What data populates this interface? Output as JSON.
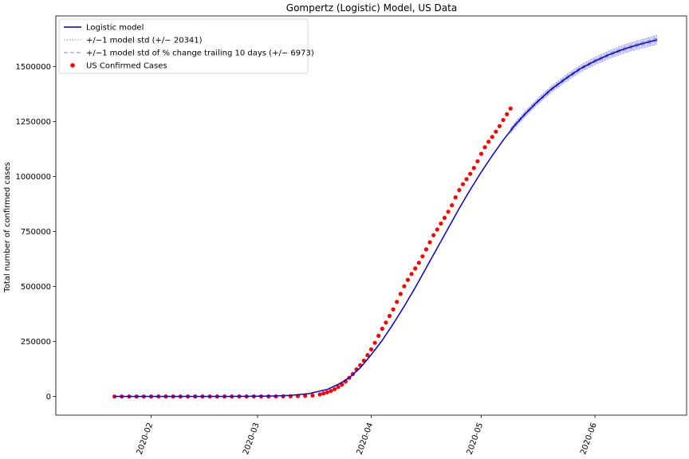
{
  "chart_data": {
    "type": "line",
    "title": "Gompertz (Logistic) Model, US Data",
    "xlabel": "",
    "ylabel": "Total number of confirmed cases",
    "x_type": "date",
    "xlim": [
      "2020-01-06",
      "2020-06-26"
    ],
    "ylim": [
      -85000,
      1730000
    ],
    "x_ticks": [
      "2020-02-01",
      "2020-03-01",
      "2020-04-01",
      "2020-05-01",
      "2020-06-01"
    ],
    "x_tick_labels": [
      "2020-02",
      "2020-03",
      "2020-04",
      "2020-05",
      "2020-06"
    ],
    "y_ticks": [
      0,
      250000,
      500000,
      750000,
      1000000,
      1250000,
      1500000
    ],
    "y_tick_labels": [
      "0",
      "250000",
      "500000",
      "750000",
      "1000000",
      "1250000",
      "1500000"
    ],
    "grid": false,
    "legend_position": "top-left",
    "legend": [
      {
        "label": "Logistic model",
        "style": "solid-line",
        "color": "#0000cc"
      },
      {
        "label": "+/−1 model std (+/− 20341)",
        "style": "dotted-line",
        "color": "#8080e8"
      },
      {
        "label": "+/−1 model std of % change trailing 10 days (+/− 6973)",
        "style": "dashed-line",
        "color": "#8080e8"
      },
      {
        "label": "US Confirmed Cases",
        "style": "marker",
        "color": "#ff0000"
      }
    ],
    "series": [
      {
        "name": "Logistic model",
        "kind": "line",
        "color": "#0000cc",
        "points": [
          [
            "2020-01-22",
            0
          ],
          [
            "2020-02-10",
            0
          ],
          [
            "2020-02-20",
            0
          ],
          [
            "2020-02-28",
            800
          ],
          [
            "2020-03-05",
            2000
          ],
          [
            "2020-03-10",
            5000
          ],
          [
            "2020-03-15",
            13000
          ],
          [
            "2020-03-20",
            32000
          ],
          [
            "2020-03-23",
            55000
          ],
          [
            "2020-03-26",
            85000
          ],
          [
            "2020-03-29",
            130000
          ],
          [
            "2020-04-01",
            190000
          ],
          [
            "2020-04-04",
            255000
          ],
          [
            "2020-04-07",
            330000
          ],
          [
            "2020-04-10",
            410000
          ],
          [
            "2020-04-13",
            495000
          ],
          [
            "2020-04-16",
            585000
          ],
          [
            "2020-04-19",
            675000
          ],
          [
            "2020-04-22",
            765000
          ],
          [
            "2020-04-25",
            855000
          ],
          [
            "2020-04-28",
            940000
          ],
          [
            "2020-05-01",
            1020000
          ],
          [
            "2020-05-04",
            1095000
          ],
          [
            "2020-05-07",
            1165000
          ],
          [
            "2020-05-10",
            1230000
          ],
          [
            "2020-05-13",
            1285000
          ],
          [
            "2020-05-16",
            1335000
          ],
          [
            "2020-05-20",
            1395000
          ],
          [
            "2020-05-24",
            1445000
          ],
          [
            "2020-05-28",
            1490000
          ],
          [
            "2020-06-01",
            1525000
          ],
          [
            "2020-06-05",
            1555000
          ],
          [
            "2020-06-09",
            1580000
          ],
          [
            "2020-06-13",
            1600000
          ],
          [
            "2020-06-18",
            1622000
          ]
        ]
      },
      {
        "name": "US Confirmed Cases",
        "kind": "scatter",
        "color": "#ff0000",
        "points": [
          [
            "2020-01-22",
            1
          ],
          [
            "2020-01-24",
            2
          ],
          [
            "2020-01-26",
            5
          ],
          [
            "2020-01-28",
            5
          ],
          [
            "2020-01-30",
            6
          ],
          [
            "2020-02-01",
            8
          ],
          [
            "2020-02-03",
            11
          ],
          [
            "2020-02-05",
            12
          ],
          [
            "2020-02-07",
            12
          ],
          [
            "2020-02-09",
            12
          ],
          [
            "2020-02-11",
            13
          ],
          [
            "2020-02-13",
            15
          ],
          [
            "2020-02-15",
            15
          ],
          [
            "2020-02-17",
            15
          ],
          [
            "2020-02-19",
            15
          ],
          [
            "2020-02-21",
            35
          ],
          [
            "2020-02-23",
            35
          ],
          [
            "2020-02-25",
            53
          ],
          [
            "2020-02-27",
            60
          ],
          [
            "2020-02-29",
            68
          ],
          [
            "2020-03-02",
            100
          ],
          [
            "2020-03-04",
            150
          ],
          [
            "2020-03-06",
            300
          ],
          [
            "2020-03-08",
            550
          ],
          [
            "2020-03-10",
            1000
          ],
          [
            "2020-03-12",
            1700
          ],
          [
            "2020-03-14",
            2800
          ],
          [
            "2020-03-16",
            4600
          ],
          [
            "2020-03-18",
            9400
          ],
          [
            "2020-03-19",
            14000
          ],
          [
            "2020-03-20",
            19000
          ],
          [
            "2020-03-21",
            25000
          ],
          [
            "2020-03-22",
            33000
          ],
          [
            "2020-03-23",
            43000
          ],
          [
            "2020-03-24",
            54000
          ],
          [
            "2020-03-25",
            68000
          ],
          [
            "2020-03-26",
            85000
          ],
          [
            "2020-03-27",
            102000
          ],
          [
            "2020-03-28",
            123000
          ],
          [
            "2020-03-29",
            142000
          ],
          [
            "2020-03-30",
            163000
          ],
          [
            "2020-03-31",
            188000
          ],
          [
            "2020-04-01",
            214000
          ],
          [
            "2020-04-02",
            244000
          ],
          [
            "2020-04-03",
            276000
          ],
          [
            "2020-04-04",
            308000
          ],
          [
            "2020-04-05",
            336000
          ],
          [
            "2020-04-06",
            366000
          ],
          [
            "2020-04-07",
            396000
          ],
          [
            "2020-04-08",
            430000
          ],
          [
            "2020-04-09",
            466000
          ],
          [
            "2020-04-10",
            501000
          ],
          [
            "2020-04-11",
            530000
          ],
          [
            "2020-04-12",
            557000
          ],
          [
            "2020-04-13",
            582000
          ],
          [
            "2020-04-14",
            608000
          ],
          [
            "2020-04-15",
            637000
          ],
          [
            "2020-04-16",
            669000
          ],
          [
            "2020-04-17",
            701000
          ],
          [
            "2020-04-18",
            733000
          ],
          [
            "2020-04-19",
            759000
          ],
          [
            "2020-04-20",
            786000
          ],
          [
            "2020-04-21",
            812000
          ],
          [
            "2020-04-22",
            840000
          ],
          [
            "2020-04-23",
            869000
          ],
          [
            "2020-04-24",
            905000
          ],
          [
            "2020-04-25",
            938000
          ],
          [
            "2020-04-26",
            965000
          ],
          [
            "2020-04-27",
            988000
          ],
          [
            "2020-04-28",
            1012000
          ],
          [
            "2020-04-29",
            1039000
          ],
          [
            "2020-04-30",
            1069000
          ],
          [
            "2020-05-01",
            1103000
          ],
          [
            "2020-05-02",
            1133000
          ],
          [
            "2020-05-03",
            1158000
          ],
          [
            "2020-05-04",
            1180000
          ],
          [
            "2020-05-05",
            1204000
          ],
          [
            "2020-05-06",
            1229000
          ],
          [
            "2020-05-07",
            1257000
          ],
          [
            "2020-05-08",
            1283000
          ],
          [
            "2020-05-09",
            1309000
          ]
        ]
      }
    ],
    "bands": [
      {
        "name": "+/−1 model std (+/− 20341)",
        "color": "#8080e8",
        "style": "dotted",
        "x_start": "2020-05-09",
        "x_end": "2020-06-18",
        "spread": 20341
      },
      {
        "name": "+/−1 model std of % change trailing 10 days (+/− 6973)",
        "color": "#8080e8",
        "style": "dashed",
        "x_start": "2020-05-09",
        "x_end": "2020-06-18",
        "spread": 6973
      }
    ]
  }
}
